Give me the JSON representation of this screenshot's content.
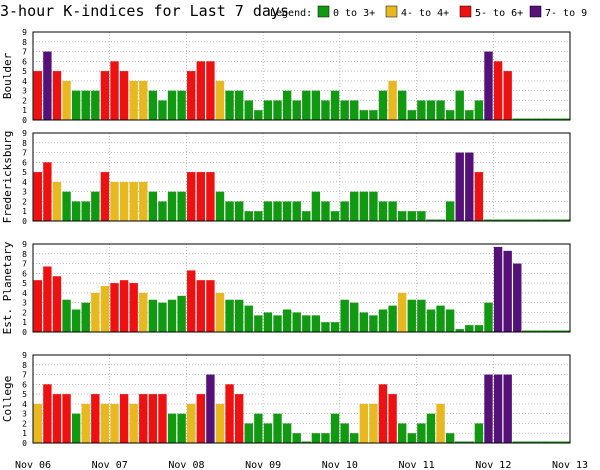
{
  "chart_data": {
    "type": "bar",
    "title": "3-hour K-indices for Last 7 days",
    "legend": {
      "label": "Legend:",
      "entries": [
        {
          "label": "0 to 3+",
          "color": "#119911"
        },
        {
          "label": "4- to 4+",
          "color": "#e8b820"
        },
        {
          "label": "5- to 6+",
          "color": "#ee1111"
        },
        {
          "label": "7- to 9",
          "color": "#551177"
        }
      ]
    },
    "x_ticks": [
      "Nov 06",
      "Nov 07",
      "Nov 08",
      "Nov 09",
      "Nov 10",
      "Nov 11",
      "Nov 12",
      "Nov 13"
    ],
    "y_ticks": [
      "0",
      "1",
      "2",
      "3",
      "4",
      "5",
      "6",
      "7",
      "8",
      "9"
    ],
    "ylim": [
      0,
      9
    ],
    "grid": true,
    "bins_per_day": 8,
    "days": 7,
    "panels": [
      {
        "name": "Boulder",
        "values": [
          5,
          7,
          5,
          4,
          3,
          3,
          3,
          5,
          6,
          5,
          4,
          4,
          3,
          2,
          3,
          3,
          5,
          6,
          6,
          4,
          3,
          3,
          2,
          1,
          2,
          2,
          3,
          2,
          3,
          3,
          2,
          3,
          2,
          2,
          1,
          1,
          3,
          4,
          3,
          1,
          2,
          2,
          2,
          1,
          3,
          1,
          2,
          7,
          6,
          5,
          0,
          0,
          0,
          0,
          0,
          0
        ]
      },
      {
        "name": "Fredericksburg",
        "values": [
          5,
          6,
          4,
          3,
          2,
          2,
          3,
          5,
          4,
          4,
          4,
          4,
          3,
          2,
          3,
          3,
          5,
          5,
          5,
          3,
          2,
          2,
          1,
          1,
          2,
          2,
          2,
          2,
          1,
          3,
          2,
          1,
          2,
          3,
          3,
          3,
          2,
          2,
          1,
          1,
          1,
          0,
          0,
          2,
          7,
          7,
          5,
          0,
          0,
          0,
          0,
          0,
          0,
          0,
          0,
          0
        ]
      },
      {
        "name": "Est. Planetary",
        "values": [
          5.3,
          6.7,
          5.7,
          3.3,
          2.3,
          3,
          4,
          4.7,
          5,
          5.3,
          5,
          4,
          3.3,
          3,
          3.3,
          3.7,
          6.3,
          5.3,
          5.3,
          4,
          3.3,
          3.3,
          2.7,
          1.7,
          2,
          1.7,
          2.3,
          2,
          1.7,
          1.7,
          1,
          1,
          3.3,
          3,
          2,
          1.7,
          2.3,
          2.7,
          4,
          3.3,
          3.3,
          2.3,
          2.7,
          2.3,
          0.3,
          0.7,
          0.7,
          3,
          8.7,
          8.3,
          7,
          0,
          0,
          0,
          0,
          0
        ]
      },
      {
        "name": "College",
        "values": [
          4,
          6,
          5,
          5,
          3,
          4,
          5,
          4,
          4,
          5,
          4,
          5,
          5,
          5,
          3,
          3,
          4,
          5,
          7,
          4,
          6,
          5,
          2,
          3,
          2,
          3,
          2,
          1,
          0,
          1,
          1,
          3,
          2,
          1,
          4,
          4,
          6,
          5,
          2,
          1,
          2,
          3,
          4,
          1,
          0,
          0,
          2,
          7,
          7,
          7,
          0,
          0,
          0,
          0,
          0,
          0
        ]
      }
    ]
  }
}
